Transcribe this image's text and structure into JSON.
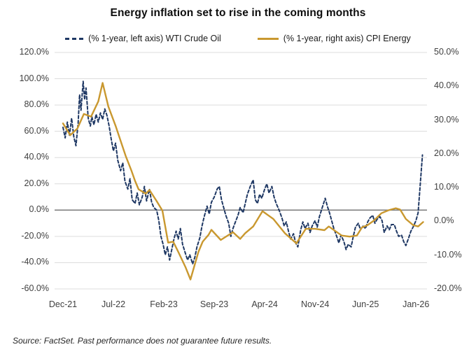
{
  "title": "Energy inflation set to rise in the coming months",
  "source_note": "Source: FactSet. Past performance does not guarantee future results.",
  "legend": {
    "wti_label": "(% 1-year, left axis) WTI Crude Oil",
    "cpi_label": "(% 1-year, right axis) CPI Energy"
  },
  "colors": {
    "wti": "#1F3864",
    "cpi": "#C9982F",
    "grid": "#DCDCDC",
    "zero_line": "#7F7F7F",
    "axis_text": "#3F3F3F"
  },
  "chart_data": {
    "type": "line",
    "title": "Energy inflation set to rise in the coming months",
    "x_unit": "month_index_from_Dec-2021",
    "x_domain": [
      0,
      50.5
    ],
    "x_tick_months": [
      0,
      7,
      14,
      21,
      28,
      35,
      42,
      49
    ],
    "x_tick_labels": [
      "Dec-21",
      "Jul-22",
      "Feb-23",
      "Sep-23",
      "Apr-24",
      "Nov-24",
      "Jun-25",
      "Jan-26"
    ],
    "grid": "horizontal-only",
    "legend_position": "top-center",
    "left_axis": {
      "label": "% 1-year, WTI Crude Oil",
      "range": [
        120,
        -60
      ],
      "tick_values": [
        120,
        100,
        80,
        60,
        40,
        20,
        0,
        -20,
        -40,
        -60
      ],
      "tick_labels": [
        "120.0%",
        "100.0%",
        "80.0%",
        "60.0%",
        "40.0%",
        "20.0%",
        "0.0%",
        "-20.0%",
        "-40.0%",
        "-60.0%"
      ]
    },
    "right_axis": {
      "label": "% 1-year, CPI Energy",
      "range": [
        50,
        -20
      ],
      "tick_values": [
        50,
        40,
        30,
        20,
        10,
        0,
        -10,
        -20
      ],
      "tick_labels": [
        "50.0%",
        "40.0%",
        "30.0%",
        "20.0%",
        "10.0%",
        "0.0%",
        "-10.0%",
        "-20.0%"
      ]
    },
    "zero_reference_line_left_value": 0,
    "series": [
      {
        "name": "WTI Crude Oil (% 1-year, left axis)",
        "axis": "left",
        "style": "dashed",
        "color_key": "wti",
        "points": [
          [
            0,
            63
          ],
          [
            0.3,
            55
          ],
          [
            0.6,
            67
          ],
          [
            0.9,
            57
          ],
          [
            1.2,
            70
          ],
          [
            1.5,
            56
          ],
          [
            1.8,
            49
          ],
          [
            2.1,
            66
          ],
          [
            2.3,
            88
          ],
          [
            2.5,
            76
          ],
          [
            2.8,
            98
          ],
          [
            3,
            84
          ],
          [
            3.2,
            93
          ],
          [
            3.5,
            70
          ],
          [
            3.8,
            64
          ],
          [
            4,
            71
          ],
          [
            4.3,
            65
          ],
          [
            4.6,
            73
          ],
          [
            4.9,
            67
          ],
          [
            5.2,
            74
          ],
          [
            5.5,
            69
          ],
          [
            5.8,
            77
          ],
          [
            6.1,
            72
          ],
          [
            6.4,
            64
          ],
          [
            6.7,
            54
          ],
          [
            7,
            45
          ],
          [
            7.3,
            51
          ],
          [
            7.6,
            38
          ],
          [
            8,
            30
          ],
          [
            8.3,
            36
          ],
          [
            8.6,
            22
          ],
          [
            9,
            16
          ],
          [
            9.3,
            24
          ],
          [
            9.6,
            8
          ],
          [
            10,
            5
          ],
          [
            10.3,
            13
          ],
          [
            10.6,
            4
          ],
          [
            11,
            10
          ],
          [
            11.3,
            18
          ],
          [
            11.6,
            7
          ],
          [
            12,
            16
          ],
          [
            12.3,
            6
          ],
          [
            12.6,
            2
          ],
          [
            13,
            0
          ],
          [
            13.3,
            -8
          ],
          [
            13.6,
            -20
          ],
          [
            13.9,
            -26
          ],
          [
            14.2,
            -34
          ],
          [
            14.5,
            -28
          ],
          [
            14.8,
            -38
          ],
          [
            15.1,
            -30
          ],
          [
            15.4,
            -22
          ],
          [
            15.7,
            -16
          ],
          [
            16,
            -22
          ],
          [
            16.3,
            -14
          ],
          [
            16.6,
            -26
          ],
          [
            17,
            -33
          ],
          [
            17.3,
            -38
          ],
          [
            17.6,
            -34
          ],
          [
            18,
            -41
          ],
          [
            18.3,
            -36
          ],
          [
            18.6,
            -28
          ],
          [
            19,
            -21
          ],
          [
            19.3,
            -12
          ],
          [
            19.6,
            -5
          ],
          [
            20,
            3
          ],
          [
            20.3,
            -3
          ],
          [
            20.6,
            6
          ],
          [
            21,
            10
          ],
          [
            21.4,
            16
          ],
          [
            21.7,
            18
          ],
          [
            22,
            8
          ],
          [
            22.3,
            2
          ],
          [
            22.6,
            -4
          ],
          [
            23,
            -10
          ],
          [
            23.3,
            -20
          ],
          [
            23.6,
            -14
          ],
          [
            24,
            -8
          ],
          [
            24.3,
            -4
          ],
          [
            24.6,
            2
          ],
          [
            25,
            -2
          ],
          [
            25.3,
            5
          ],
          [
            25.6,
            12
          ],
          [
            26,
            18
          ],
          [
            26.4,
            23
          ],
          [
            26.7,
            8
          ],
          [
            27,
            5
          ],
          [
            27.3,
            12
          ],
          [
            27.6,
            9
          ],
          [
            28,
            16
          ],
          [
            28.3,
            20
          ],
          [
            28.6,
            13
          ],
          [
            29,
            18
          ],
          [
            29.3,
            10
          ],
          [
            29.6,
            5
          ],
          [
            30,
            0
          ],
          [
            30.4,
            -6
          ],
          [
            30.7,
            -12
          ],
          [
            31,
            -9
          ],
          [
            31.3,
            -16
          ],
          [
            31.6,
            -22
          ],
          [
            32,
            -18
          ],
          [
            32.3,
            -25
          ],
          [
            32.6,
            -28
          ],
          [
            33,
            -15
          ],
          [
            33.3,
            -9
          ],
          [
            33.6,
            -14
          ],
          [
            34,
            -10
          ],
          [
            34.3,
            -17
          ],
          [
            34.6,
            -12
          ],
          [
            35,
            -8
          ],
          [
            35.3,
            -13
          ],
          [
            35.6,
            -5
          ],
          [
            36,
            2
          ],
          [
            36.4,
            9
          ],
          [
            36.7,
            3
          ],
          [
            37,
            -2
          ],
          [
            37.3,
            -8
          ],
          [
            37.6,
            -14
          ],
          [
            38,
            -20
          ],
          [
            38.3,
            -25
          ],
          [
            38.6,
            -19
          ],
          [
            39,
            -24
          ],
          [
            39.3,
            -30
          ],
          [
            39.6,
            -26
          ],
          [
            40,
            -28
          ],
          [
            40.3,
            -20
          ],
          [
            40.6,
            -13
          ],
          [
            41,
            -10
          ],
          [
            41.3,
            -15
          ],
          [
            41.6,
            -12
          ],
          [
            42,
            -14
          ],
          [
            42.3,
            -9
          ],
          [
            42.6,
            -6
          ],
          [
            43,
            -4
          ],
          [
            43.3,
            -10
          ],
          [
            43.6,
            -7
          ],
          [
            44,
            -5
          ],
          [
            44.3,
            -8
          ],
          [
            44.6,
            -17
          ],
          [
            45,
            -12
          ],
          [
            45.3,
            -15
          ],
          [
            45.6,
            -11
          ],
          [
            46,
            -11
          ],
          [
            46.3,
            -16
          ],
          [
            46.6,
            -20
          ],
          [
            47,
            -19
          ],
          [
            47.3,
            -24
          ],
          [
            47.6,
            -27
          ],
          [
            48,
            -21
          ],
          [
            48.3,
            -16
          ],
          [
            48.6,
            -13
          ],
          [
            49,
            -8
          ],
          [
            49.3,
            -2
          ],
          [
            49.6,
            20
          ],
          [
            49.9,
            42
          ]
        ]
      },
      {
        "name": "CPI Energy (% 1-year, right axis)",
        "axis": "right",
        "style": "solid",
        "color_key": "cpi",
        "points": [
          [
            0,
            29
          ],
          [
            1,
            25.5
          ],
          [
            2,
            27.5
          ],
          [
            2.9,
            31.8
          ],
          [
            3.9,
            31
          ],
          [
            4.9,
            35.5
          ],
          [
            5.5,
            41
          ],
          [
            6.3,
            34
          ],
          [
            7.3,
            28.3
          ],
          [
            8.7,
            19.4
          ],
          [
            9.5,
            15
          ],
          [
            10,
            12
          ],
          [
            10.5,
            9.5
          ],
          [
            11.5,
            8.2
          ],
          [
            12,
            9.3
          ],
          [
            13,
            6
          ],
          [
            13.8,
            3.2
          ],
          [
            14.6,
            -6.3
          ],
          [
            15.3,
            -6
          ],
          [
            16,
            -9
          ],
          [
            17,
            -13.5
          ],
          [
            17.7,
            -17.2
          ],
          [
            18.8,
            -9
          ],
          [
            19.4,
            -6
          ],
          [
            20.2,
            -4
          ],
          [
            20.6,
            -2.5
          ],
          [
            21.9,
            -5.5
          ],
          [
            23.6,
            -3.2
          ],
          [
            24.6,
            -5.2
          ],
          [
            25.3,
            -3.5
          ],
          [
            26.4,
            -1.5
          ],
          [
            27.7,
            3
          ],
          [
            29.2,
            0.7
          ],
          [
            30.8,
            -3.5
          ],
          [
            32.4,
            -6.5
          ],
          [
            33.7,
            -2.2
          ],
          [
            35,
            -2.2
          ],
          [
            36.3,
            -2.6
          ],
          [
            36.9,
            -1.5
          ],
          [
            38.7,
            -4.2
          ],
          [
            39.8,
            -4.5
          ],
          [
            40.8,
            -4.2
          ],
          [
            41.5,
            -1.8
          ],
          [
            42.3,
            -1.1
          ],
          [
            43.2,
            0.3
          ],
          [
            44.2,
            2.4
          ],
          [
            45.2,
            3.3
          ],
          [
            46.2,
            3.9
          ],
          [
            46.8,
            3.5
          ],
          [
            47.6,
            0.7
          ],
          [
            48.6,
            -1.1
          ],
          [
            49.3,
            -1.5
          ],
          [
            50,
            -0.2
          ]
        ]
      }
    ]
  }
}
